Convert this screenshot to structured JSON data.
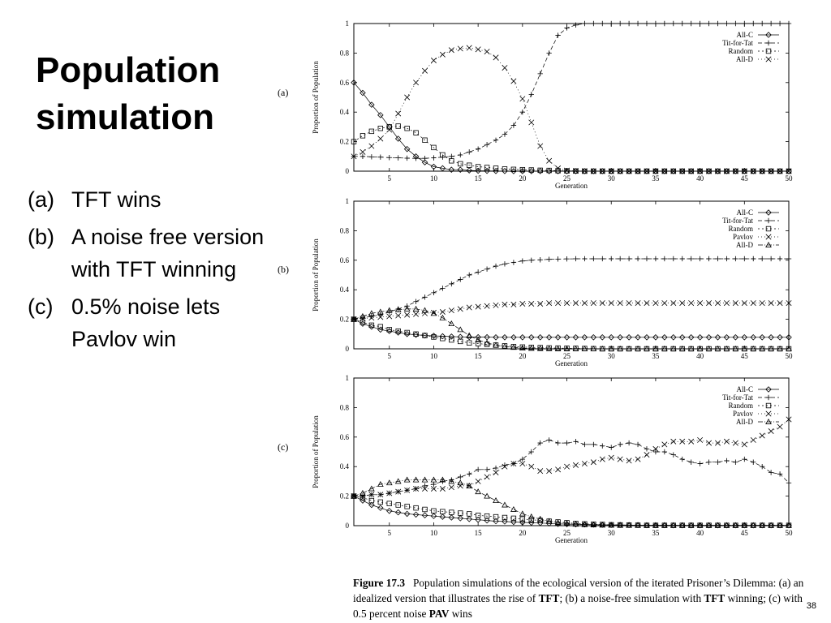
{
  "slide": {
    "title_line1": "Population",
    "title_line2": "simulation",
    "bullets": [
      {
        "label": "(a)",
        "text": "TFT wins"
      },
      {
        "label": "(b)",
        "text": "A noise free version with TFT winning"
      },
      {
        "label": "(c)",
        "text": "0.5% noise lets Pavlov win"
      }
    ],
    "page_number": "38"
  },
  "caption": {
    "figure": "Figure 17.3",
    "part1": "Population simulations of the ecological version of the iterated Prisoner’s Dilemma: (a) an idealized version that illustrates the rise of ",
    "tft1": "TFT",
    "part2": "; (b) a noise-free simulation with ",
    "tft2": "TFT",
    "part3": " winning; (c) with 0.5 percent noise ",
    "pav": "PAV",
    "part4": " wins"
  },
  "chart_data": [
    {
      "type": "line",
      "panel_label": "(a)",
      "xlabel": "Generation",
      "ylabel": "Proportion of Population",
      "xlim": [
        1,
        50
      ],
      "ylim": [
        0,
        1
      ],
      "xticks": [
        5,
        10,
        15,
        20,
        25,
        30,
        35,
        40,
        45,
        50
      ],
      "yticks": [
        0,
        0.2,
        0.4,
        0.6,
        0.8,
        1
      ],
      "legend_position": "top-right",
      "x": [
        1,
        2,
        3,
        4,
        5,
        6,
        7,
        8,
        9,
        10,
        11,
        12,
        13,
        14,
        15,
        16,
        17,
        18,
        19,
        20,
        21,
        22,
        23,
        24,
        25,
        26,
        27,
        28,
        29,
        30,
        31,
        32,
        33,
        34,
        35,
        36,
        37,
        38,
        39,
        40,
        41,
        42,
        43,
        44,
        45,
        46,
        47,
        48,
        49,
        50
      ],
      "series": [
        {
          "name": "All-C",
          "marker": "diamond",
          "values": [
            0.6,
            0.53,
            0.45,
            0.38,
            0.3,
            0.22,
            0.15,
            0.1,
            0.06,
            0.03,
            0.02,
            0.01,
            0.01,
            0.005,
            0.003,
            0.002,
            0.001,
            0.001,
            0,
            0,
            0,
            0,
            0,
            0,
            0,
            0,
            0,
            0,
            0,
            0,
            0,
            0,
            0,
            0,
            0,
            0,
            0,
            0,
            0,
            0,
            0,
            0,
            0,
            0,
            0,
            0,
            0,
            0,
            0,
            0
          ]
        },
        {
          "name": "Tit-for-Tat",
          "marker": "plus",
          "values": [
            0.1,
            0.1,
            0.097,
            0.095,
            0.092,
            0.09,
            0.088,
            0.087,
            0.087,
            0.09,
            0.095,
            0.1,
            0.11,
            0.13,
            0.15,
            0.18,
            0.21,
            0.25,
            0.31,
            0.4,
            0.52,
            0.66,
            0.8,
            0.92,
            0.97,
            0.99,
            1,
            1,
            1,
            1,
            1,
            1,
            1,
            1,
            1,
            1,
            1,
            1,
            1,
            1,
            1,
            1,
            1,
            1,
            1,
            1,
            1,
            1,
            1,
            1
          ]
        },
        {
          "name": "Random",
          "marker": "square",
          "values": [
            0.2,
            0.24,
            0.27,
            0.29,
            0.3,
            0.305,
            0.29,
            0.26,
            0.21,
            0.16,
            0.11,
            0.07,
            0.05,
            0.04,
            0.03,
            0.025,
            0.02,
            0.015,
            0.012,
            0.01,
            0.008,
            0.006,
            0.005,
            0.003,
            0.002,
            0.001,
            0,
            0,
            0,
            0,
            0,
            0,
            0,
            0,
            0,
            0,
            0,
            0,
            0,
            0,
            0,
            0,
            0,
            0,
            0,
            0,
            0,
            0,
            0,
            0
          ]
        },
        {
          "name": "All-D",
          "marker": "cross",
          "values": [
            0.1,
            0.13,
            0.17,
            0.22,
            0.28,
            0.39,
            0.5,
            0.6,
            0.68,
            0.75,
            0.79,
            0.82,
            0.83,
            0.835,
            0.825,
            0.81,
            0.77,
            0.7,
            0.61,
            0.49,
            0.33,
            0.17,
            0.07,
            0.02,
            0.005,
            0.002,
            0.001,
            0,
            0,
            0,
            0,
            0,
            0,
            0,
            0,
            0,
            0,
            0,
            0,
            0,
            0,
            0,
            0,
            0,
            0,
            0,
            0,
            0,
            0,
            0
          ]
        }
      ]
    },
    {
      "type": "line",
      "panel_label": "(b)",
      "xlabel": "Generation",
      "ylabel": "Proportion of Population",
      "xlim": [
        1,
        50
      ],
      "ylim": [
        0,
        1
      ],
      "xticks": [
        5,
        10,
        15,
        20,
        25,
        30,
        35,
        40,
        45,
        50
      ],
      "yticks": [
        0,
        0.2,
        0.4,
        0.6,
        0.8,
        1
      ],
      "legend_position": "top-right",
      "x": [
        1,
        2,
        3,
        4,
        5,
        6,
        7,
        8,
        9,
        10,
        11,
        12,
        13,
        14,
        15,
        16,
        17,
        18,
        19,
        20,
        21,
        22,
        23,
        24,
        25,
        26,
        27,
        28,
        29,
        30,
        31,
        32,
        33,
        34,
        35,
        36,
        37,
        38,
        39,
        40,
        41,
        42,
        43,
        44,
        45,
        46,
        47,
        48,
        49,
        50
      ],
      "series": [
        {
          "name": "All-C",
          "marker": "diamond",
          "values": [
            0.2,
            0.17,
            0.15,
            0.13,
            0.12,
            0.11,
            0.1,
            0.095,
            0.09,
            0.088,
            0.085,
            0.083,
            0.081,
            0.08,
            0.079,
            0.079,
            0.078,
            0.078,
            0.078,
            0.078,
            0.078,
            0.078,
            0.078,
            0.078,
            0.078,
            0.078,
            0.078,
            0.078,
            0.078,
            0.078,
            0.078,
            0.078,
            0.078,
            0.078,
            0.078,
            0.078,
            0.078,
            0.078,
            0.078,
            0.078,
            0.078,
            0.078,
            0.078,
            0.078,
            0.078,
            0.078,
            0.078,
            0.078,
            0.078,
            0.078
          ]
        },
        {
          "name": "Tit-for-Tat",
          "marker": "plus",
          "values": [
            0.2,
            0.21,
            0.22,
            0.23,
            0.25,
            0.27,
            0.29,
            0.32,
            0.35,
            0.38,
            0.41,
            0.44,
            0.47,
            0.5,
            0.52,
            0.54,
            0.56,
            0.575,
            0.585,
            0.595,
            0.6,
            0.603,
            0.606,
            0.608,
            0.609,
            0.61,
            0.61,
            0.61,
            0.61,
            0.61,
            0.61,
            0.61,
            0.61,
            0.61,
            0.61,
            0.61,
            0.61,
            0.61,
            0.61,
            0.61,
            0.61,
            0.61,
            0.61,
            0.61,
            0.61,
            0.61,
            0.61,
            0.61,
            0.61,
            0.61
          ]
        },
        {
          "name": "Random",
          "marker": "square",
          "values": [
            0.2,
            0.18,
            0.16,
            0.15,
            0.13,
            0.12,
            0.11,
            0.1,
            0.09,
            0.08,
            0.07,
            0.06,
            0.05,
            0.04,
            0.035,
            0.03,
            0.025,
            0.02,
            0.015,
            0.012,
            0.01,
            0.008,
            0.006,
            0.005,
            0.004,
            0.003,
            0.002,
            0.001,
            0,
            0,
            0,
            0,
            0,
            0,
            0,
            0,
            0,
            0,
            0,
            0,
            0,
            0,
            0,
            0,
            0,
            0,
            0,
            0,
            0,
            0
          ]
        },
        {
          "name": "Pavlov",
          "marker": "cross",
          "values": [
            0.2,
            0.205,
            0.21,
            0.215,
            0.22,
            0.225,
            0.23,
            0.235,
            0.24,
            0.245,
            0.25,
            0.26,
            0.27,
            0.28,
            0.285,
            0.29,
            0.295,
            0.3,
            0.3,
            0.305,
            0.305,
            0.305,
            0.31,
            0.31,
            0.31,
            0.31,
            0.31,
            0.31,
            0.31,
            0.31,
            0.31,
            0.31,
            0.31,
            0.31,
            0.31,
            0.31,
            0.31,
            0.31,
            0.31,
            0.31,
            0.31,
            0.31,
            0.31,
            0.31,
            0.31,
            0.31,
            0.31,
            0.31,
            0.31,
            0.31
          ]
        },
        {
          "name": "All-D",
          "marker": "triangle",
          "values": [
            0.2,
            0.22,
            0.24,
            0.25,
            0.26,
            0.265,
            0.27,
            0.27,
            0.26,
            0.24,
            0.21,
            0.17,
            0.13,
            0.09,
            0.06,
            0.04,
            0.025,
            0.015,
            0.01,
            0.005,
            0.003,
            0.002,
            0.001,
            0,
            0,
            0,
            0,
            0,
            0,
            0,
            0,
            0,
            0,
            0,
            0,
            0,
            0,
            0,
            0,
            0,
            0,
            0,
            0,
            0,
            0,
            0,
            0,
            0,
            0,
            0
          ]
        }
      ]
    },
    {
      "type": "line",
      "panel_label": "(c)",
      "xlabel": "Generation",
      "ylabel": "Proportion of Population",
      "xlim": [
        1,
        50
      ],
      "ylim": [
        0,
        1
      ],
      "xticks": [
        5,
        10,
        15,
        20,
        25,
        30,
        35,
        40,
        45,
        50
      ],
      "yticks": [
        0,
        0.2,
        0.4,
        0.6,
        0.8,
        1
      ],
      "legend_position": "top-right",
      "x": [
        1,
        2,
        3,
        4,
        5,
        6,
        7,
        8,
        9,
        10,
        11,
        12,
        13,
        14,
        15,
        16,
        17,
        18,
        19,
        20,
        21,
        22,
        23,
        24,
        25,
        26,
        27,
        28,
        29,
        30,
        31,
        32,
        33,
        34,
        35,
        36,
        37,
        38,
        39,
        40,
        41,
        42,
        43,
        44,
        45,
        46,
        47,
        48,
        49,
        50
      ],
      "series": [
        {
          "name": "All-C",
          "marker": "diamond",
          "values": [
            0.2,
            0.17,
            0.14,
            0.12,
            0.1,
            0.09,
            0.08,
            0.075,
            0.07,
            0.065,
            0.06,
            0.055,
            0.05,
            0.045,
            0.04,
            0.035,
            0.03,
            0.028,
            0.025,
            0.022,
            0.02,
            0.018,
            0.015,
            0.012,
            0.01,
            0.009,
            0.008,
            0.007,
            0.006,
            0.005,
            0.005,
            0.004,
            0.004,
            0.003,
            0.003,
            0.003,
            0.002,
            0.002,
            0.002,
            0.002,
            0.002,
            0.002,
            0.002,
            0.002,
            0.002,
            0.002,
            0.002,
            0.002,
            0.002,
            0.002
          ]
        },
        {
          "name": "Tit-for-Tat",
          "marker": "plus",
          "values": [
            0.2,
            0.2,
            0.21,
            0.21,
            0.22,
            0.23,
            0.24,
            0.25,
            0.27,
            0.28,
            0.3,
            0.31,
            0.33,
            0.35,
            0.38,
            0.38,
            0.39,
            0.41,
            0.42,
            0.45,
            0.5,
            0.56,
            0.58,
            0.56,
            0.56,
            0.57,
            0.55,
            0.55,
            0.54,
            0.53,
            0.55,
            0.56,
            0.55,
            0.52,
            0.5,
            0.5,
            0.48,
            0.45,
            0.43,
            0.42,
            0.43,
            0.43,
            0.44,
            0.43,
            0.45,
            0.43,
            0.4,
            0.36,
            0.35,
            0.29
          ]
        },
        {
          "name": "Random",
          "marker": "square",
          "values": [
            0.2,
            0.19,
            0.17,
            0.16,
            0.15,
            0.14,
            0.13,
            0.12,
            0.11,
            0.1,
            0.095,
            0.09,
            0.085,
            0.08,
            0.07,
            0.065,
            0.06,
            0.055,
            0.05,
            0.045,
            0.04,
            0.035,
            0.03,
            0.025,
            0.02,
            0.015,
            0.012,
            0.01,
            0.008,
            0.006,
            0.005,
            0.004,
            0.003,
            0.002,
            0.002,
            0.002,
            0.002,
            0.002,
            0.002,
            0.002,
            0.002,
            0.002,
            0.002,
            0.002,
            0.002,
            0.002,
            0.002,
            0.002,
            0.002,
            0.002
          ]
        },
        {
          "name": "Pavlov",
          "marker": "cross",
          "values": [
            0.2,
            0.2,
            0.21,
            0.21,
            0.22,
            0.23,
            0.24,
            0.25,
            0.25,
            0.25,
            0.25,
            0.26,
            0.27,
            0.27,
            0.3,
            0.33,
            0.36,
            0.4,
            0.42,
            0.42,
            0.4,
            0.37,
            0.37,
            0.38,
            0.4,
            0.41,
            0.42,
            0.43,
            0.45,
            0.46,
            0.45,
            0.44,
            0.45,
            0.48,
            0.52,
            0.55,
            0.57,
            0.57,
            0.57,
            0.58,
            0.56,
            0.56,
            0.57,
            0.56,
            0.55,
            0.58,
            0.61,
            0.64,
            0.67,
            0.72
          ]
        },
        {
          "name": "All-D",
          "marker": "triangle",
          "values": [
            0.2,
            0.22,
            0.25,
            0.28,
            0.29,
            0.3,
            0.31,
            0.31,
            0.31,
            0.31,
            0.31,
            0.3,
            0.29,
            0.27,
            0.23,
            0.2,
            0.17,
            0.14,
            0.11,
            0.08,
            0.06,
            0.045,
            0.03,
            0.02,
            0.015,
            0.01,
            0.007,
            0.005,
            0.004,
            0.003,
            0.002,
            0.002,
            0.002,
            0.002,
            0.002,
            0.002,
            0.002,
            0.002,
            0.002,
            0.002,
            0.002,
            0.002,
            0.002,
            0.002,
            0.002,
            0.002,
            0.002,
            0.002,
            0.002,
            0.002
          ]
        }
      ]
    }
  ]
}
